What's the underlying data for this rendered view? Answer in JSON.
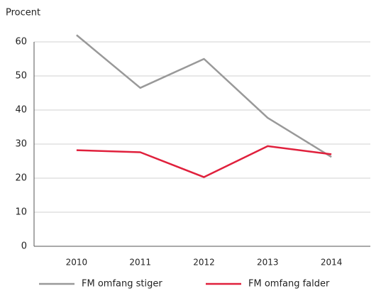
{
  "chart_data": {
    "type": "line",
    "y_label": "Procent",
    "categories": [
      "2010",
      "2011",
      "2012",
      "2013",
      "2014"
    ],
    "series": [
      {
        "name": "FM omfang stiger",
        "color": "#999999",
        "values": [
          62,
          46.5,
          55,
          37.7,
          26.2
        ]
      },
      {
        "name": "FM omfang falder",
        "color": "#e0203c",
        "values": [
          28.2,
          27.6,
          20.3,
          29.4,
          27.0
        ]
      }
    ],
    "ylim": [
      0,
      62
    ],
    "yticks": [
      0,
      10,
      20,
      30,
      40,
      50,
      60
    ],
    "grid": true
  }
}
